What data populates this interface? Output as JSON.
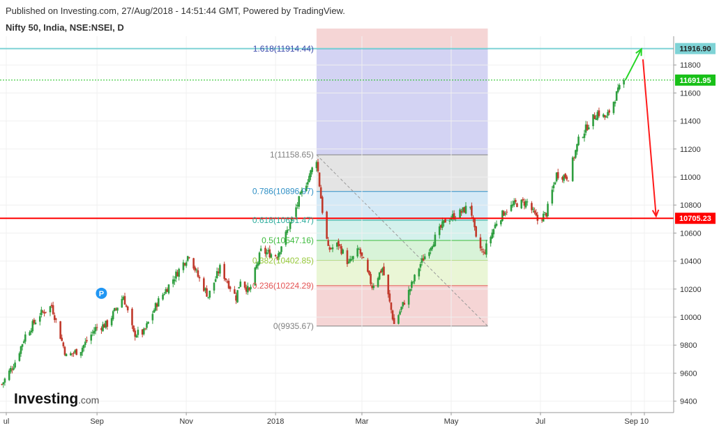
{
  "header": {
    "published": "Published on Investing.com, 27/Aug/2018 - 14:51:44 GMT, Powered by TradingView.",
    "symbol": "Nifty 50, India, NSE:NSEI, D"
  },
  "logo": {
    "brand": "Investing",
    "suffix": ".com"
  },
  "marker_p": "P",
  "colors": {
    "up": "#2e9e3f",
    "down": "#c0392b",
    "support": "#ff0000",
    "target": "#7fd3d6",
    "current": "#18c018",
    "up_arrow": "#26d626",
    "down_arrow": "#ff1a1a"
  },
  "chart_data": {
    "type": "candlestick",
    "title": "Nifty 50, India, NSE:NSEI, D",
    "ylim": [
      9300,
      12050
    ],
    "y_ticks": [
      9400,
      9600,
      9800,
      10000,
      10200,
      10400,
      10600,
      10800,
      11000,
      11200,
      11400,
      11600,
      11800
    ],
    "x_ticks": [
      {
        "label": "ul",
        "date": "2017-07-01"
      },
      {
        "label": "Sep",
        "date": "2017-09-01"
      },
      {
        "label": "Nov",
        "date": "2017-11-01"
      },
      {
        "label": "2018",
        "date": "2018-01-01"
      },
      {
        "label": "Mar",
        "date": "2018-03-01"
      },
      {
        "label": "May",
        "date": "2018-05-01"
      },
      {
        "label": "Jul",
        "date": "2018-07-01"
      },
      {
        "label": "Sep",
        "date": "2018-09-01"
      },
      {
        "label": "10",
        "date": "2018-09-10"
      }
    ],
    "price_path": [
      [
        "2017-06-28",
        9520
      ],
      [
        "2017-07-07",
        9680
      ],
      [
        "2017-07-14",
        9870
      ],
      [
        "2017-07-24",
        10020
      ],
      [
        "2017-08-01",
        10080
      ],
      [
        "2017-08-11",
        9720
      ],
      [
        "2017-08-21",
        9770
      ],
      [
        "2017-08-31",
        9920
      ],
      [
        "2017-09-08",
        9950
      ],
      [
        "2017-09-19",
        10150
      ],
      [
        "2017-09-26",
        9880
      ],
      [
        "2017-10-03",
        9890
      ],
      [
        "2017-10-12",
        10100
      ],
      [
        "2017-10-26",
        10320
      ],
      [
        "2017-11-03",
        10450
      ],
      [
        "2017-11-09",
        10290
      ],
      [
        "2017-11-16",
        10150
      ],
      [
        "2017-11-24",
        10350
      ],
      [
        "2017-12-05",
        10140
      ],
      [
        "2017-12-08",
        10270
      ],
      [
        "2017-12-14",
        10180
      ],
      [
        "2017-12-22",
        10470
      ],
      [
        "2018-01-02",
        10440
      ],
      [
        "2018-01-10",
        10640
      ],
      [
        "2018-01-19",
        10890
      ],
      [
        "2018-01-29",
        11130
      ],
      [
        "2018-02-02",
        10760
      ],
      [
        "2018-02-06",
        10480
      ],
      [
        "2018-02-13",
        10520
      ],
      [
        "2018-02-20",
        10380
      ],
      [
        "2018-02-27",
        10480
      ],
      [
        "2018-03-08",
        10220
      ],
      [
        "2018-03-15",
        10350
      ],
      [
        "2018-03-23",
        9950
      ],
      [
        "2018-04-02",
        10180
      ],
      [
        "2018-04-10",
        10380
      ],
      [
        "2018-04-18",
        10530
      ],
      [
        "2018-04-27",
        10690
      ],
      [
        "2018-05-08",
        10750
      ],
      [
        "2018-05-14",
        10800
      ],
      [
        "2018-05-18",
        10550
      ],
      [
        "2018-05-23",
        10450
      ],
      [
        "2018-06-01",
        10680
      ],
      [
        "2018-06-07",
        10760
      ],
      [
        "2018-06-14",
        10810
      ],
      [
        "2018-06-22",
        10820
      ],
      [
        "2018-06-29",
        10690
      ],
      [
        "2018-07-05",
        10740
      ],
      [
        "2018-07-12",
        11020
      ],
      [
        "2018-07-20",
        11000
      ],
      [
        "2018-07-27",
        11260
      ],
      [
        "2018-08-03",
        11380
      ],
      [
        "2018-08-09",
        11460
      ],
      [
        "2018-08-15",
        11420
      ],
      [
        "2018-08-22",
        11590
      ],
      [
        "2018-08-27",
        11691.95
      ]
    ],
    "fibonacci": {
      "start_date": "2018-01-29",
      "end_date": "2018-05-26",
      "levels": [
        {
          "ratio": 1.618,
          "value": 11914.44,
          "label": "1.618(11914.44)",
          "color": "#3949ab",
          "fill": "#d3d3f3"
        },
        {
          "ratio": 1,
          "value": 11158.65,
          "label": "1(11158.65)",
          "color": "#808080",
          "fill": "#e4e4e4"
        },
        {
          "ratio": 0.786,
          "value": 10896.97,
          "label": "0.786(10896.97)",
          "color": "#2e8fc5",
          "fill": "#d4e9f6"
        },
        {
          "ratio": 0.618,
          "value": 10691.47,
          "label": "0.618(10691.47)",
          "color": "#2aab9b",
          "fill": "#d4f1ec"
        },
        {
          "ratio": 0.5,
          "value": 10547.16,
          "label": "0.5(10547.16)",
          "color": "#3dbb3d",
          "fill": "#d8f3d8"
        },
        {
          "ratio": 0.382,
          "value": 10402.85,
          "label": "0.382(10402.85)",
          "color": "#97c93a",
          "fill": "#eaf6d6"
        },
        {
          "ratio": 0.236,
          "value": 10224.29,
          "label": "0.236(10224.29)",
          "color": "#e45353",
          "fill": "#f5d5d5"
        },
        {
          "ratio": 0,
          "value": 9935.67,
          "label": "0(9935.67)",
          "color": "#808080",
          "fill": null
        }
      ]
    },
    "horizontal_lines": [
      {
        "value": 11916.9,
        "label": "11916.90",
        "color": "#7fd3d6",
        "style": "solid"
      },
      {
        "value": 11691.95,
        "label": "11691.95",
        "color": "#18c018",
        "style": "dotted"
      },
      {
        "value": 10705.23,
        "label": "10705.23",
        "color": "#ff0000",
        "style": "solid"
      }
    ],
    "arrows": [
      {
        "from": [
          "2018-08-28",
          11691.95
        ],
        "to": [
          "2018-09-08",
          11914
        ],
        "color": "#26d626"
      },
      {
        "from": [
          "2018-09-09",
          11840
        ],
        "to": [
          "2018-09-18",
          10720
        ],
        "color": "#ff1a1a"
      }
    ],
    "marker": {
      "date": "2017-09-04",
      "value": 10170,
      "text": "P"
    }
  }
}
